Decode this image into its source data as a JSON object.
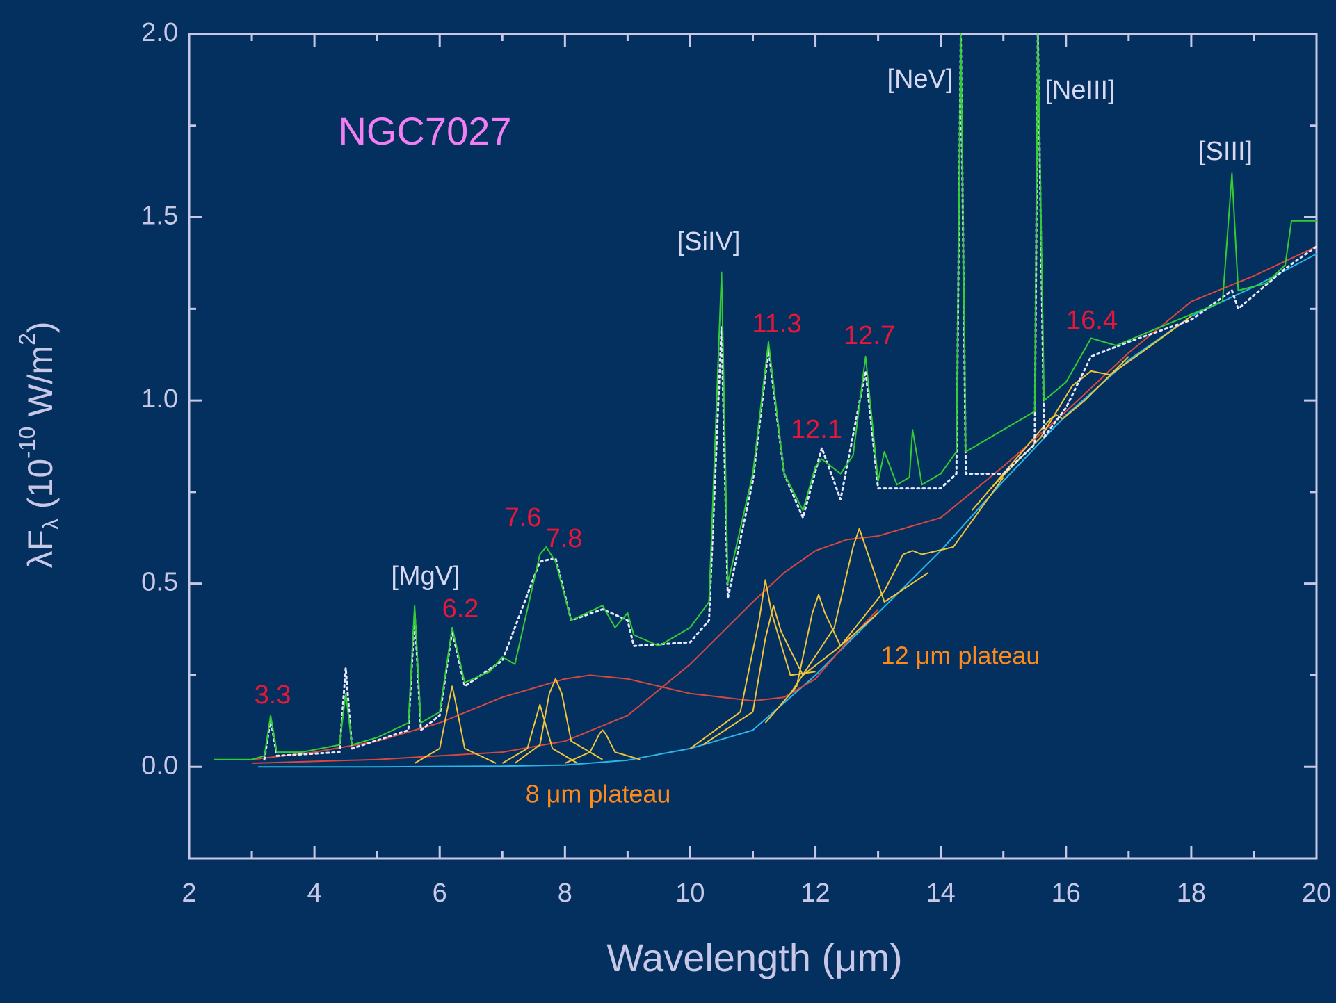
{
  "chart_data": {
    "type": "line",
    "title": "NGC7027",
    "title_color": "#f27ff2",
    "xlabel": "Wavelength (μm)",
    "ylabel_parts": [
      "λF",
      "λ",
      " (10",
      "-10",
      " W/m",
      "2",
      ")"
    ],
    "xlim": [
      2,
      20
    ],
    "ylim": [
      -0.25,
      2.0
    ],
    "xticks": [
      2,
      4,
      6,
      8,
      10,
      12,
      14,
      16,
      18,
      20
    ],
    "xminorticks": [
      3,
      5,
      7,
      9,
      11,
      13,
      15,
      17,
      19
    ],
    "yticks": [
      {
        "value": 0,
        "label": "0.0"
      },
      {
        "value": 0.5,
        "label": "0.5"
      },
      {
        "value": 1,
        "label": "1.0"
      },
      {
        "value": 1.5,
        "label": "1.5"
      },
      {
        "value": 2,
        "label": "2.0"
      }
    ],
    "yminorticks": [
      -0.25,
      0.25,
      0.75,
      1.25,
      1.75
    ],
    "annotations": [
      {
        "text": "3.3",
        "color": "#e8173a"
      },
      {
        "text": "[MgV]",
        "color": "#d8d8f0"
      },
      {
        "text": "6.2",
        "color": "#e8173a"
      },
      {
        "text": "7.6",
        "color": "#e8173a"
      },
      {
        "text": "7.8",
        "color": "#e8173a"
      },
      {
        "text": "[SiIV]",
        "color": "#d8d8f0"
      },
      {
        "text": "11.3",
        "color": "#e8173a"
      },
      {
        "text": "12.1",
        "color": "#e8173a"
      },
      {
        "text": "12.7",
        "color": "#e8173a"
      },
      {
        "text": "[NeV]",
        "color": "#d8d8f0"
      },
      {
        "text": "[NeIII]",
        "color": "#d8d8f0"
      },
      {
        "text": "16.4",
        "color": "#e8173a"
      },
      {
        "text": "[SIII]",
        "color": "#d8d8f0"
      },
      {
        "text": "8 μm plateau",
        "color": "#ff8a1c"
      },
      {
        "text": "12 μm plateau",
        "color": "#ff8a1c"
      }
    ],
    "series": [
      {
        "color": "#2bb6e8",
        "style": "solid",
        "x": [
          3.1,
          5,
          7,
          8,
          9,
          10,
          11,
          12,
          13,
          14,
          15,
          16,
          17,
          18,
          19,
          20
        ],
        "values": [
          0,
          0,
          0.002,
          0.005,
          0.018,
          0.05,
          0.1,
          0.25,
          0.42,
          0.59,
          0.78,
          0.96,
          1.11,
          1.23,
          1.31,
          1.4
        ]
      },
      {
        "color": "#d9473f",
        "style": "solid",
        "x": [
          3,
          4,
          5,
          6,
          7,
          8,
          8.4,
          9,
          10,
          11,
          11.5,
          12,
          12.5,
          13
        ],
        "values": [
          0.02,
          0.04,
          0.07,
          0.12,
          0.19,
          0.24,
          0.25,
          0.24,
          0.2,
          0.18,
          0.19,
          0.24,
          0.34,
          0.43
        ]
      },
      {
        "color": "#d9473f",
        "style": "solid",
        "x": [
          3,
          5,
          7,
          8,
          9,
          10,
          11,
          11.5,
          12,
          12.5,
          13,
          14,
          15,
          16,
          17,
          18,
          19,
          20
        ],
        "values": [
          0.01,
          0.02,
          0.04,
          0.07,
          0.14,
          0.28,
          0.45,
          0.53,
          0.59,
          0.62,
          0.63,
          0.68,
          0.82,
          0.97,
          1.13,
          1.27,
          1.34,
          1.42
        ]
      },
      {
        "color": "#f2c43a",
        "style": "solid",
        "x": [
          5.6,
          6.0,
          6.15,
          6.2,
          6.25,
          6.4,
          6.9
        ],
        "values": [
          0.01,
          0.05,
          0.18,
          0.22,
          0.18,
          0.05,
          0.01
        ]
      },
      {
        "color": "#f2c43a",
        "style": "solid",
        "x": [
          7.0,
          7.4,
          7.55,
          7.6,
          7.65,
          7.8,
          8.2
        ],
        "values": [
          0.01,
          0.05,
          0.14,
          0.17,
          0.14,
          0.05,
          0.01
        ]
      },
      {
        "color": "#f2c43a",
        "style": "solid",
        "x": [
          7.2,
          7.6,
          7.75,
          7.85,
          7.95,
          8.1,
          8.6
        ],
        "values": [
          0.01,
          0.06,
          0.2,
          0.24,
          0.2,
          0.07,
          0.02
        ]
      },
      {
        "color": "#f2c43a",
        "style": "solid",
        "x": [
          8.0,
          8.4,
          8.55,
          8.6,
          8.65,
          8.8,
          9.2
        ],
        "values": [
          0.01,
          0.04,
          0.09,
          0.1,
          0.09,
          0.04,
          0.02
        ]
      },
      {
        "color": "#f2c43a",
        "style": "solid",
        "x": [
          10.0,
          10.8,
          11.1,
          11.2,
          11.3,
          11.6,
          12.0
        ],
        "values": [
          0.05,
          0.15,
          0.4,
          0.51,
          0.42,
          0.25,
          0.26
        ]
      },
      {
        "color": "#f2c43a",
        "style": "solid",
        "x": [
          10.2,
          11.0,
          11.2,
          11.33,
          11.45,
          11.8,
          12.4
        ],
        "values": [
          0.06,
          0.15,
          0.35,
          0.44,
          0.37,
          0.25,
          0.33
        ]
      },
      {
        "color": "#f2c43a",
        "style": "solid",
        "x": [
          11.2,
          11.7,
          11.95,
          12.05,
          12.15,
          12.4,
          13.0
        ],
        "values": [
          0.12,
          0.22,
          0.42,
          0.47,
          0.42,
          0.33,
          0.42
        ]
      },
      {
        "color": "#f2c43a",
        "style": "solid",
        "x": [
          11.6,
          12.3,
          12.6,
          12.7,
          12.8,
          13.1,
          13.8
        ],
        "values": [
          0.2,
          0.38,
          0.6,
          0.65,
          0.6,
          0.45,
          0.53
        ]
      },
      {
        "color": "#f2c43a",
        "style": "solid",
        "x": [
          12.4,
          13.1,
          13.4,
          13.55,
          13.7,
          14.2,
          15.0
        ],
        "values": [
          0.33,
          0.48,
          0.58,
          0.59,
          0.58,
          0.6,
          0.79
        ]
      },
      {
        "color": "#f2c43a",
        "style": "solid",
        "x": [
          14.5,
          15.4,
          15.75,
          15.85,
          15.95,
          16.3,
          17.0
        ],
        "values": [
          0.7,
          0.88,
          0.95,
          0.96,
          0.95,
          1.0,
          1.12
        ]
      },
      {
        "color": "#f2c43a",
        "style": "solid",
        "x": [
          14.8,
          15.6,
          16.1,
          16.4,
          16.7,
          17.2,
          18.0
        ],
        "values": [
          0.76,
          0.9,
          1.04,
          1.08,
          1.07,
          1.13,
          1.23
        ]
      },
      {
        "color": "#e8e8ff",
        "style": "dotted",
        "x": [
          3.2,
          3.3,
          3.4,
          4.4,
          4.5,
          4.6,
          5.5,
          5.6,
          5.7,
          6.0,
          6.2,
          6.4,
          7.0,
          7.6,
          7.85,
          8.1,
          8.6,
          9.0,
          9.1,
          10.0,
          10.3,
          10.5,
          10.6,
          11.0,
          11.25,
          11.5,
          11.8,
          12.1,
          12.4,
          12.8,
          13.0,
          13.5,
          14.0,
          14.25,
          14.32,
          14.4,
          15.0,
          15.5,
          15.55,
          15.65,
          16.0,
          16.4,
          17.0,
          18.0,
          18.65,
          18.75,
          19.5,
          20.0
        ],
        "values": [
          0.02,
          0.13,
          0.03,
          0.04,
          0.27,
          0.05,
          0.1,
          0.42,
          0.1,
          0.14,
          0.37,
          0.22,
          0.29,
          0.56,
          0.57,
          0.4,
          0.43,
          0.4,
          0.33,
          0.34,
          0.4,
          1.2,
          0.46,
          0.78,
          1.14,
          0.8,
          0.68,
          0.87,
          0.73,
          1.08,
          0.76,
          0.76,
          0.76,
          0.8,
          2.0,
          0.8,
          0.8,
          0.88,
          2.0,
          0.9,
          0.98,
          1.12,
          1.16,
          1.22,
          1.3,
          1.25,
          1.36,
          1.42
        ]
      },
      {
        "color": "#33cc33",
        "style": "solid",
        "x": [
          2.4,
          3.0,
          3.2,
          3.3,
          3.4,
          3.8,
          4.4,
          4.5,
          4.6,
          5.0,
          5.5,
          5.6,
          5.7,
          6.0,
          6.2,
          6.4,
          6.8,
          7.0,
          7.2,
          7.6,
          7.7,
          7.85,
          8.1,
          8.6,
          8.8,
          9.0,
          9.1,
          9.5,
          10.0,
          10.3,
          10.5,
          10.6,
          11.0,
          11.25,
          11.5,
          11.8,
          12.0,
          12.1,
          12.4,
          12.6,
          12.8,
          13.0,
          13.1,
          13.3,
          13.5,
          13.55,
          13.7,
          14.0,
          14.25,
          14.32,
          14.4,
          14.8,
          15.5,
          15.55,
          15.65,
          16.0,
          16.4,
          16.8,
          17.5,
          18.5,
          18.65,
          18.75,
          19.2,
          19.5,
          19.6,
          20.0
        ],
        "values": [
          0.02,
          0.02,
          0.03,
          0.14,
          0.04,
          0.04,
          0.06,
          0.2,
          0.06,
          0.08,
          0.12,
          0.44,
          0.12,
          0.15,
          0.38,
          0.23,
          0.26,
          0.3,
          0.28,
          0.58,
          0.6,
          0.56,
          0.4,
          0.44,
          0.38,
          0.42,
          0.36,
          0.33,
          0.38,
          0.45,
          1.35,
          0.5,
          0.8,
          1.16,
          0.8,
          0.7,
          0.82,
          0.84,
          0.8,
          0.85,
          1.12,
          0.78,
          0.86,
          0.77,
          0.79,
          0.92,
          0.77,
          0.8,
          0.86,
          2.0,
          0.86,
          0.9,
          0.97,
          2.0,
          1.0,
          1.05,
          1.17,
          1.15,
          1.2,
          1.27,
          1.62,
          1.3,
          1.32,
          1.37,
          1.49,
          1.49
        ]
      }
    ]
  }
}
